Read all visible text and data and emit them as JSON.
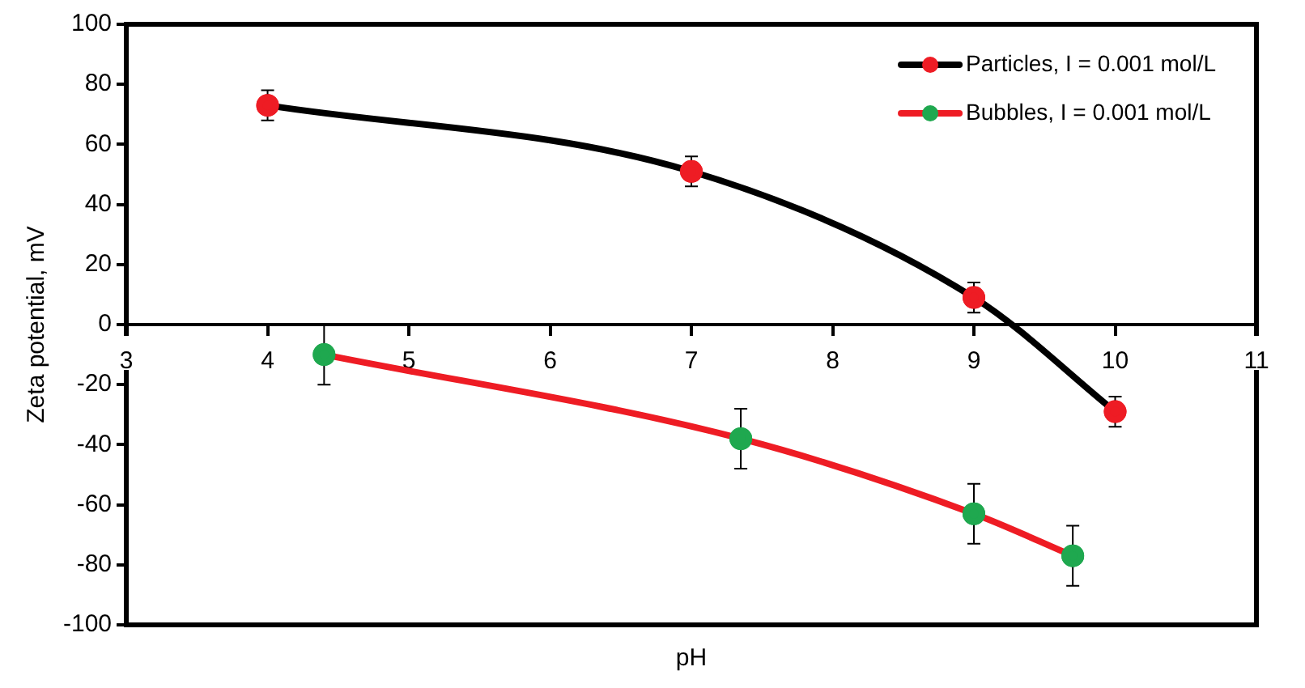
{
  "chart_data": {
    "type": "line",
    "xlabel": "pH",
    "ylabel": "Zeta potential, mV",
    "xlim": [
      3,
      11
    ],
    "xticks": [
      3,
      4,
      5,
      6,
      7,
      8,
      9,
      10,
      11
    ],
    "ylim": [
      -100,
      100
    ],
    "yticks": [
      -100,
      -80,
      -60,
      -40,
      -20,
      0,
      20,
      40,
      60,
      80,
      100
    ],
    "grid": false,
    "legend": "top right",
    "marker": "circle",
    "line_style": "solid",
    "series": [
      {
        "name": "Particles, I = 0.001 mol/L",
        "color": "#000000",
        "colors": [
          "#ee1c24",
          "#ee1c24",
          "#ee1c24",
          "#ee1c24"
        ],
        "x": [
          4,
          7,
          9,
          10
        ],
        "values": [
          73,
          51,
          9,
          -29
        ],
        "errors": [
          5,
          5,
          5,
          5
        ]
      },
      {
        "name": "Bubbles, I = 0.001 mol/L",
        "color": "#ee1c24",
        "colors": [
          "#1fa84f",
          "#1fa84f",
          "#1fa84f",
          "#1fa84f"
        ],
        "x": [
          4.4,
          7.35,
          9,
          9.7
        ],
        "values": [
          -10,
          -38,
          -63,
          -77
        ],
        "errors": [
          10,
          10,
          10,
          10
        ]
      }
    ]
  }
}
